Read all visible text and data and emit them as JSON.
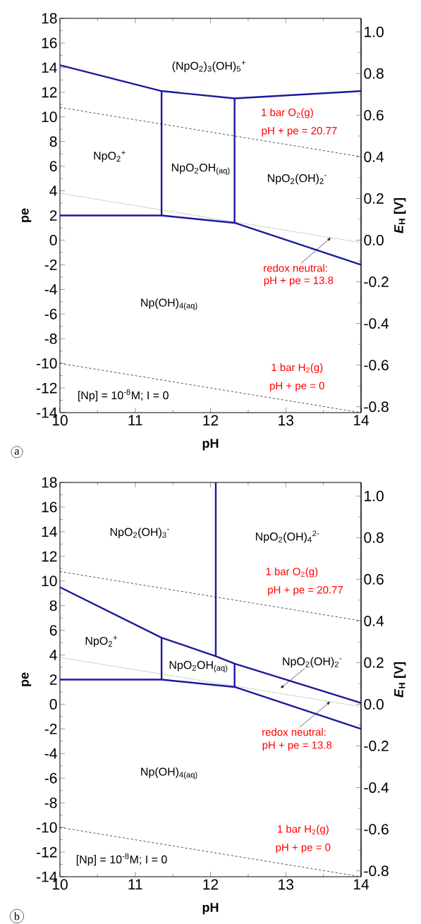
{
  "chart_data": [
    {
      "type": "line",
      "xlabel": "pH",
      "ylabel": "pe",
      "y2label": "*E*$_{H}$ [V]",
      "xlim": [
        10,
        14
      ],
      "ylim": [
        -14,
        18
      ],
      "y2lim": [
        -0.828,
        1.065
      ],
      "xticks": [
        10,
        11,
        12,
        13,
        14
      ],
      "yticks": [
        -14,
        -12,
        -10,
        -8,
        -6,
        -4,
        -2,
        0,
        2,
        4,
        6,
        8,
        10,
        12,
        14,
        16,
        18
      ],
      "y2ticks": [
        {
          "value": -0.8,
          "label": "-0.8"
        },
        {
          "value": -0.6,
          "label": "-0.6"
        },
        {
          "value": -0.4,
          "label": "-0.4"
        },
        {
          "value": -0.2,
          "label": "-0.2"
        },
        {
          "value": 0,
          "label": "0.0"
        },
        {
          "value": 0.2,
          "label": "0.2"
        },
        {
          "value": 0.4,
          "label": "0.4"
        },
        {
          "value": 0.6,
          "label": "0.6"
        },
        {
          "value": 0.8,
          "label": "0.8"
        },
        {
          "value": 1.0,
          "label": "1.0"
        }
      ],
      "series": [
        {
          "color": "#1a1a9c",
          "line_style": "solid",
          "x": [
            10,
            11.35,
            12.32,
            14
          ],
          "values": [
            14.2,
            12.1,
            11.5,
            12.1
          ]
        },
        {
          "color": "#1a1a9c",
          "line_style": "solid",
          "x": [
            11.35,
            11.35
          ],
          "values": [
            2.0,
            12.1
          ]
        },
        {
          "color": "#1a1a9c",
          "line_style": "solid",
          "x": [
            12.32,
            12.32
          ],
          "values": [
            1.4,
            11.5
          ]
        },
        {
          "color": "#1a1a9c",
          "line_style": "solid",
          "x": [
            10,
            11.35,
            12.32,
            14
          ],
          "values": [
            2.0,
            2.0,
            1.4,
            -2.0
          ]
        },
        {
          "color": "#000000",
          "line_style": "dashed",
          "x": [
            10,
            14
          ],
          "values": [
            10.77,
            6.77
          ]
        },
        {
          "color": "#000000",
          "line_style": "dotted",
          "x": [
            10,
            14
          ],
          "values": [
            3.8,
            -0.2
          ]
        },
        {
          "color": "#000000",
          "line_style": "dashed",
          "x": [
            10,
            14
          ],
          "values": [
            -10,
            -14
          ]
        }
      ],
      "annotations": [
        "(NpO$_{2}$)$_{3}$(OH)$_{5}$$^{+}$",
        "NpO$_{2}$$^{+}$",
        "NpO$_{2}$OH$_{(aq)}$",
        "NpO$_{2}$(OH)$_{2}$$^{-}$",
        "1 bar O$_{2}$(g)",
        "pH + pe = 20.77",
        {
          "text": "redox neutral:",
          "x": 13.6,
          "y": 0.2
        },
        "pH + pe = 13.8",
        "Np(OH)$_{4(aq)}$",
        "1 bar H$_{2}$(g)",
        "pH + pe = 0",
        "[Np] = 10$^{-8}$M; I = 0",
        "a"
      ]
    },
    {
      "type": "line",
      "xlabel": "pH",
      "ylabel": "pe",
      "y2label": "*E*$_{H}$ [V]",
      "xlim": [
        10,
        14
      ],
      "ylim": [
        -14,
        18
      ],
      "y2lim": [
        -0.828,
        1.065
      ],
      "xticks": [
        10,
        11,
        12,
        13,
        14
      ],
      "yticks": [
        -14,
        -12,
        -10,
        -8,
        -6,
        -4,
        -2,
        0,
        2,
        4,
        6,
        8,
        10,
        12,
        14,
        16,
        18
      ],
      "y2ticks": [
        {
          "value": -0.8,
          "label": "-0.8"
        },
        {
          "value": -0.6,
          "label": "-0.6"
        },
        {
          "value": -0.4,
          "label": "-0.4"
        },
        {
          "value": -0.2,
          "label": "-0.2"
        },
        {
          "value": 0,
          "label": "0.0"
        },
        {
          "value": 0.2,
          "label": "0.2"
        },
        {
          "value": 0.4,
          "label": "0.4"
        },
        {
          "value": 0.6,
          "label": "0.6"
        },
        {
          "value": 0.8,
          "label": "0.8"
        },
        {
          "value": 1.0,
          "label": "1.0"
        }
      ],
      "series": [
        {
          "color": "#1a1a9c",
          "line_style": "solid",
          "x": [
            10,
            11.35,
            12.07,
            12.32,
            14
          ],
          "values": [
            9.5,
            5.4,
            3.9,
            3.3,
            0.1
          ]
        },
        {
          "color": "#1a1a9c",
          "line_style": "solid",
          "x": [
            12.07,
            12.07
          ],
          "values": [
            3.9,
            18
          ]
        },
        {
          "color": "#1a1a9c",
          "line_style": "solid",
          "x": [
            11.35,
            11.35
          ],
          "values": [
            2.0,
            5.4
          ]
        },
        {
          "color": "#1a1a9c",
          "line_style": "solid",
          "x": [
            12.32,
            12.32
          ],
          "values": [
            1.4,
            3.3
          ]
        },
        {
          "color": "#1a1a9c",
          "line_style": "solid",
          "x": [
            10,
            11.35,
            12.32,
            14
          ],
          "values": [
            2.0,
            2.0,
            1.4,
            -2.0
          ]
        },
        {
          "color": "#000000",
          "line_style": "dashed",
          "x": [
            10,
            14
          ],
          "values": [
            10.77,
            6.77
          ]
        },
        {
          "color": "#000000",
          "line_style": "dotted",
          "x": [
            10,
            14
          ],
          "values": [
            3.8,
            -0.2
          ]
        },
        {
          "color": "#000000",
          "line_style": "dashed",
          "x": [
            10,
            14
          ],
          "values": [
            -10,
            -14
          ]
        }
      ],
      "annotations": [
        "NpO$_{2}$(OH)$_{3}$$^{-}$",
        "NpO$_{2}$(OH)$_{4}$$^{2-}$",
        "1 bar O$_{2}$(g)",
        "pH + pe = 20.77",
        "NpO$_{2}$$^{+}$",
        "NpO$_{2}$OH$_{(aq)}$",
        "NpO$_{2}$(OH)$_{2}$$^{-}$",
        {
          "text": "redox neutral:",
          "x": 13.59,
          "y": 0.21
        },
        "pH + pe = 13.8",
        "Np(OH)$_{4(aq)}$",
        "1 bar H$_{2}$(g)",
        "pH + pe = 0",
        "[Np] = 10$^{-8}$M; I = 0",
        "b"
      ]
    }
  ]
}
